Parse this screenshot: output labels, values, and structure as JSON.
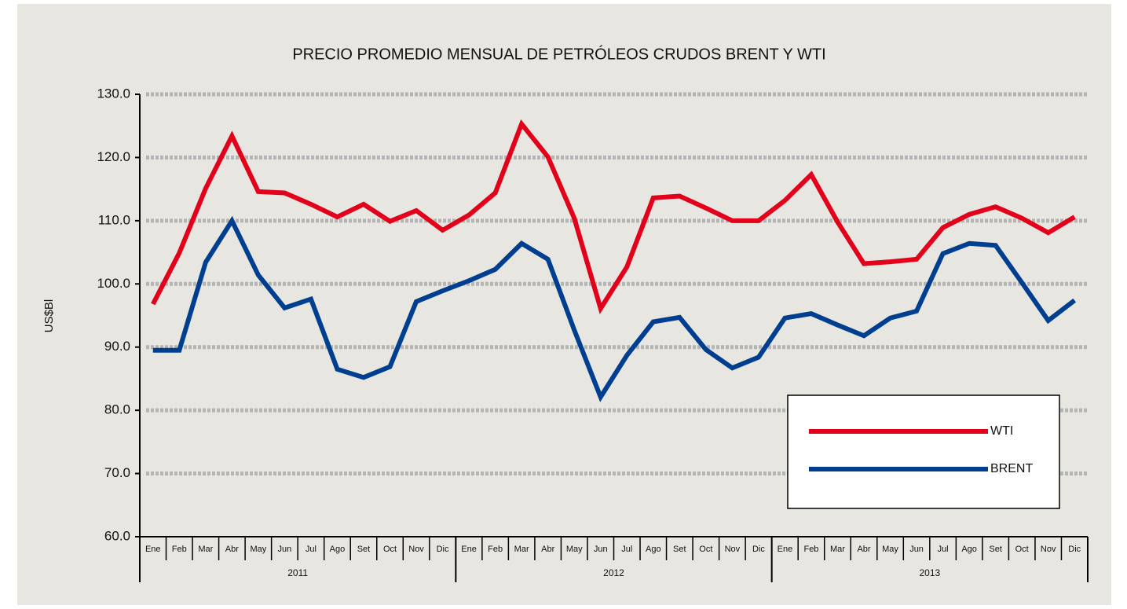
{
  "chart_data": {
    "type": "line",
    "title": "PRECIO PROMEDIO MENSUAL DE PETRÓLEOS CRUDOS BRENT Y WTI",
    "y_label": "US$Bl",
    "categories": [
      "Ene",
      "Feb",
      "Mar",
      "Abr",
      "May",
      "Jun",
      "Jul",
      "Ago",
      "Set",
      "Oct",
      "Nov",
      "Dic",
      "Ene",
      "Feb",
      "Mar",
      "Abr",
      "May",
      "Jun",
      "Jul",
      "Ago",
      "Set",
      "Oct",
      "Nov",
      "Dic",
      "Ene",
      "Feb",
      "Mar",
      "Abr",
      "May",
      "Jun",
      "Jul",
      "Ago",
      "Set",
      "Oct",
      "Nov",
      "Dic"
    ],
    "category_groups": [
      "2011",
      "2012",
      "2013"
    ],
    "series": [
      {
        "name": "WTI",
        "color": "#e2001a",
        "values": [
          96.8,
          104.9,
          115.1,
          123.4,
          114.6,
          114.4,
          112.6,
          110.6,
          112.6,
          109.9,
          111.6,
          108.5,
          110.9,
          114.4,
          125.3,
          120.1,
          110.4,
          96.1,
          102.7,
          113.6,
          113.9,
          112.0,
          110.0,
          110.0,
          113.2,
          117.3,
          109.8,
          103.2,
          103.5,
          103.9,
          108.9,
          111.0,
          112.2,
          110.4,
          108.1,
          110.6
        ]
      },
      {
        "name": "BRENT",
        "color": "#003f8f",
        "values": [
          89.5,
          89.5,
          103.4,
          110.0,
          101.4,
          96.2,
          97.6,
          86.5,
          85.2,
          86.9,
          97.2,
          98.9,
          100.5,
          102.3,
          106.4,
          103.9,
          92.7,
          82.1,
          88.7,
          94.0,
          94.7,
          89.6,
          86.7,
          88.4,
          94.6,
          95.3,
          93.5,
          91.8,
          94.6,
          95.7,
          104.8,
          106.4,
          106.1,
          100.2,
          94.2,
          97.4
        ]
      }
    ],
    "ylim": [
      60,
      130
    ],
    "yticks": [
      {
        "value": 60,
        "label": "60.0"
      },
      {
        "value": 70,
        "label": "70.0"
      },
      {
        "value": 80,
        "label": "80.0"
      },
      {
        "value": 90,
        "label": "90.0"
      },
      {
        "value": 100,
        "label": "100.0"
      },
      {
        "value": 110,
        "label": "110.0"
      },
      {
        "value": 120,
        "label": "120.0"
      },
      {
        "value": 130,
        "label": "130.0"
      }
    ],
    "grid": true,
    "legend": "lower-right"
  }
}
